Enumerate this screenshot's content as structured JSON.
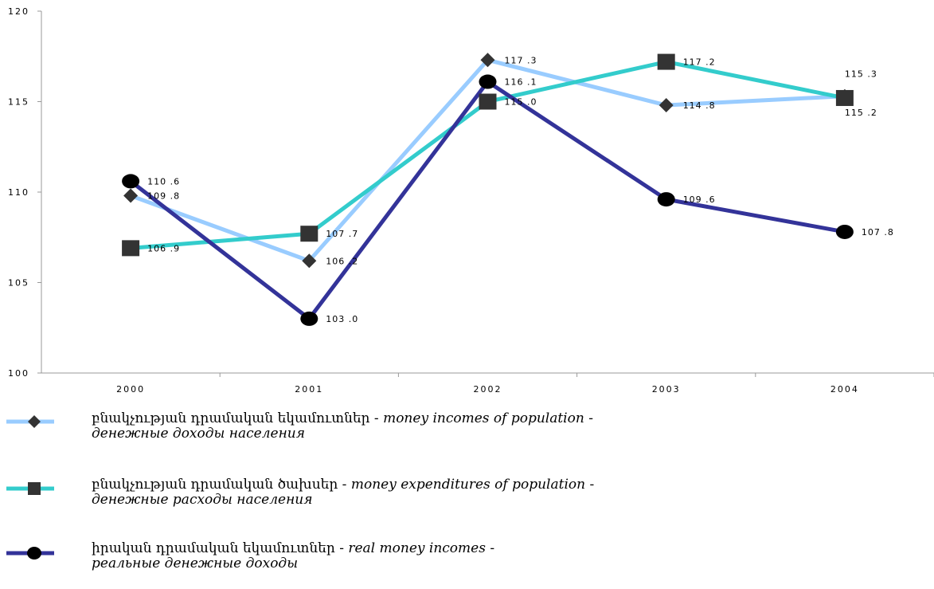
{
  "chart_data": {
    "type": "line",
    "categories": [
      "2000",
      "2001",
      "2002",
      "2003",
      "2004"
    ],
    "ylim": [
      100,
      120
    ],
    "yticks": [
      "100",
      "105",
      "110",
      "115",
      "120"
    ],
    "grid": false,
    "legend_position": "bottom",
    "series": [
      {
        "name_hy": "բնակչության դրամական եկամուտներ",
        "name_en": "money incomes of population",
        "name_ru": "денежные доходы населения",
        "values": [
          109.8,
          106.2,
          117.3,
          114.8,
          115.3
        ],
        "labels": [
          "109 .8",
          "106 .2",
          "117 .3",
          "114 .8",
          "115 .3"
        ],
        "color": "#99ccff",
        "marker": "diamond"
      },
      {
        "name_hy": "բնակչության դրամական ծախսեր",
        "name_en": "money expenditures of population",
        "name_ru": "денежные расходы населения",
        "values": [
          106.9,
          107.7,
          115.0,
          117.2,
          115.2
        ],
        "labels": [
          "106 .9",
          "107 .7",
          "115 .0",
          "117 .2",
          "115 .2"
        ],
        "color": "#33cccc",
        "marker": "square"
      },
      {
        "name_hy": "իրական դրամական եկամուտներ",
        "name_en": "real money incomes",
        "name_ru": "реальные денежные доходы",
        "values": [
          110.6,
          103.0,
          116.1,
          109.6,
          107.8
        ],
        "labels": [
          "110 .6",
          "103 .0",
          "116 .1",
          "109 .6",
          "107 .8"
        ],
        "color": "#333399",
        "marker": "circle"
      }
    ]
  },
  "legend": {
    "separator": " - "
  }
}
